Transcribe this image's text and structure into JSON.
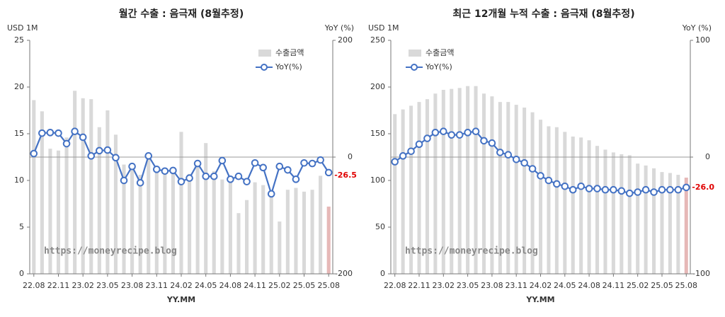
{
  "chart_data": [
    {
      "type": "bar_line",
      "title": "월간 수출 : 음극재 (8월추정)",
      "y_label": "USD 1M",
      "y2_label": "YoY (%)",
      "x_label": "YY.MM",
      "watermark": "https://moneyrecipe.blog",
      "annotation": "-26.5",
      "legend": "upper right",
      "categories": [
        "22.08",
        null,
        null,
        "22.11",
        null,
        null,
        "23.02",
        null,
        null,
        "23.05",
        null,
        null,
        "23.08",
        null,
        null,
        "23.11",
        null,
        null,
        "24.02",
        null,
        null,
        "24.05",
        null,
        null,
        "24.08",
        null,
        null,
        "24.11",
        null,
        null,
        "25.02",
        null,
        null,
        "25.05",
        null,
        null,
        "25.08"
      ],
      "series": [
        {
          "name": "수출금액",
          "color": "#d9d9d9",
          "highlight_last_color": "#e6b8b7",
          "values": [
            18.6,
            17.4,
            13.4,
            13.2,
            14.6,
            19.6,
            18.8,
            18.7,
            15.7,
            17.5,
            14.9,
            11.7,
            11.8,
            10.6,
            12.5,
            10.8,
            11.2,
            10.9,
            15.2,
            10.7,
            12.0,
            14.0,
            11.0,
            10.1,
            10.3,
            6.5,
            7.9,
            9.8,
            9.5,
            8.5,
            5.6,
            9.0,
            9.2,
            8.8,
            9.0,
            10.5,
            7.2
          ]
        },
        {
          "name": "YoY(%)",
          "color": "#4472c4",
          "axis": "y2",
          "values": [
            6,
            41,
            42,
            41,
            23,
            44,
            34,
            2,
            11,
            12,
            -1,
            -40,
            -16,
            -44,
            2,
            -21,
            -24,
            -23,
            -42,
            -36,
            -11,
            -33,
            -33,
            -6,
            -38,
            -33,
            -42,
            -10,
            -18,
            -63,
            -16,
            -22,
            -38,
            -10,
            -11,
            -5,
            -26.5
          ]
        }
      ],
      "ylim": [
        0,
        25
      ],
      "yticks": [
        0,
        5,
        10,
        15,
        20,
        25
      ],
      "y2lim": [
        -200,
        200
      ],
      "y2ticks": [
        -200,
        0,
        200
      ]
    },
    {
      "type": "bar_line",
      "title": "최근 12개월 누적 수출 : 음극재 (8월추정)",
      "y_label": "USD 1M",
      "y2_label": "YoY (%)",
      "x_label": "YY.MM",
      "watermark": "https://moneyrecipe.blog",
      "annotation": "-26.0",
      "legend": "upper left",
      "categories": [
        "22.08",
        null,
        null,
        "22.11",
        null,
        null,
        "23.02",
        null,
        null,
        "23.05",
        null,
        null,
        "23.08",
        null,
        null,
        "23.11",
        null,
        null,
        "24.02",
        null,
        null,
        "24.05",
        null,
        null,
        "24.08",
        null,
        null,
        "24.11",
        null,
        null,
        "25.02",
        null,
        null,
        "25.05",
        null,
        null,
        "25.08"
      ],
      "series": [
        {
          "name": "수출금액",
          "color": "#d9d9d9",
          "highlight_last_color": "#e6b8b7",
          "values": [
            171,
            176,
            180,
            184,
            187,
            193,
            197,
            198,
            199,
            201,
            201,
            193,
            190,
            184,
            184,
            181,
            178,
            173,
            165,
            158,
            157,
            152,
            147,
            146,
            143,
            137,
            133,
            130,
            128,
            127,
            118,
            116,
            113,
            109,
            108,
            106,
            103
          ]
        },
        {
          "name": "YoY(%)",
          "color": "#4472c4",
          "axis": "y2",
          "values": [
            -4,
            1,
            5,
            11,
            16,
            21,
            22,
            19,
            19,
            21,
            22,
            14,
            12,
            4,
            2,
            -2,
            -5,
            -10,
            -16,
            -20,
            -23,
            -25,
            -28,
            -25,
            -27,
            -27,
            -28,
            -28,
            -29,
            -31,
            -30,
            -28,
            -30,
            -28,
            -28,
            -28,
            -26
          ]
        }
      ],
      "ylim": [
        0,
        250
      ],
      "yticks": [
        0,
        50,
        100,
        150,
        200,
        250
      ],
      "y2lim": [
        -100,
        100
      ],
      "y2ticks": [
        -100,
        0,
        100
      ]
    }
  ]
}
